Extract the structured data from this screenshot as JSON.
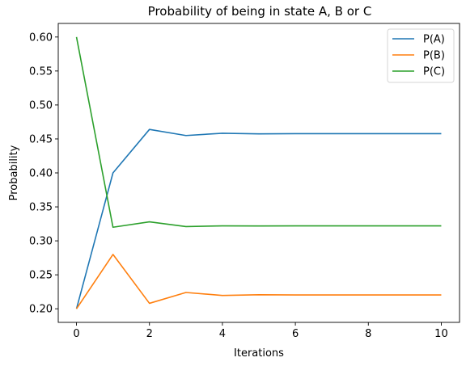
{
  "chart_data": {
    "type": "line",
    "title": "Probability of being in state A, B or C",
    "xlabel": "Iterations",
    "ylabel": "Probability",
    "x": [
      0,
      1,
      2,
      3,
      4,
      5,
      6,
      7,
      8,
      9,
      10
    ],
    "xlim": [
      -0.5,
      10.5
    ],
    "ylim": [
      0.18,
      0.62
    ],
    "xticks": [
      "0",
      "2",
      "4",
      "6",
      "8",
      "10"
    ],
    "yticks": [
      "0.20",
      "0.25",
      "0.30",
      "0.35",
      "0.40",
      "0.45",
      "0.50",
      "0.55",
      "0.60"
    ],
    "grid": false,
    "legend_position": "top-right",
    "series": [
      {
        "name": "P(A)",
        "color": "#1f77b4",
        "values": [
          0.2,
          0.4,
          0.464,
          0.455,
          0.4584,
          0.4575,
          0.4577,
          0.4577,
          0.4577,
          0.4577,
          0.4577
        ]
      },
      {
        "name": "P(B)",
        "color": "#ff7f0e",
        "values": [
          0.2,
          0.28,
          0.208,
          0.224,
          0.2196,
          0.2206,
          0.2203,
          0.2204,
          0.2204,
          0.2204,
          0.2204
        ]
      },
      {
        "name": "P(C)",
        "color": "#2ca02c",
        "values": [
          0.6,
          0.32,
          0.328,
          0.321,
          0.322,
          0.3219,
          0.322,
          0.322,
          0.322,
          0.322,
          0.322
        ]
      }
    ]
  }
}
